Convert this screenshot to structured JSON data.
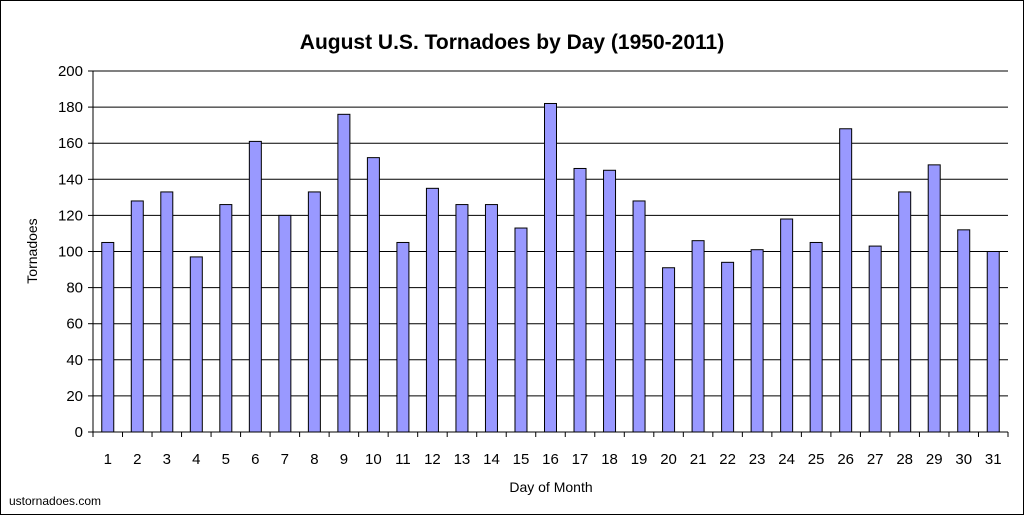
{
  "colors": {
    "bar_fill": "#9999ff",
    "bar_stroke": "#000000",
    "gridline": "#000000",
    "background": "#ffffff"
  },
  "source": "ustornadoes.com",
  "chart_data": {
    "type": "bar",
    "title": "August U.S. Tornadoes by Day (1950-2011)",
    "xlabel": "Day of Month",
    "ylabel": "Tornadoes",
    "categories": [
      "1",
      "2",
      "3",
      "4",
      "5",
      "6",
      "7",
      "8",
      "9",
      "10",
      "11",
      "12",
      "13",
      "14",
      "15",
      "16",
      "17",
      "18",
      "19",
      "20",
      "21",
      "22",
      "23",
      "24",
      "25",
      "26",
      "27",
      "28",
      "29",
      "30",
      "31"
    ],
    "values": [
      105,
      128,
      133,
      97,
      126,
      161,
      120,
      133,
      176,
      152,
      105,
      135,
      126,
      126,
      113,
      182,
      146,
      145,
      128,
      91,
      106,
      94,
      101,
      118,
      105,
      168,
      103,
      133,
      148,
      112,
      100
    ],
    "ylim": [
      0,
      200
    ],
    "yticks": [
      0,
      20,
      40,
      60,
      80,
      100,
      120,
      140,
      160,
      180,
      200
    ],
    "grid": true,
    "legend": "none"
  }
}
